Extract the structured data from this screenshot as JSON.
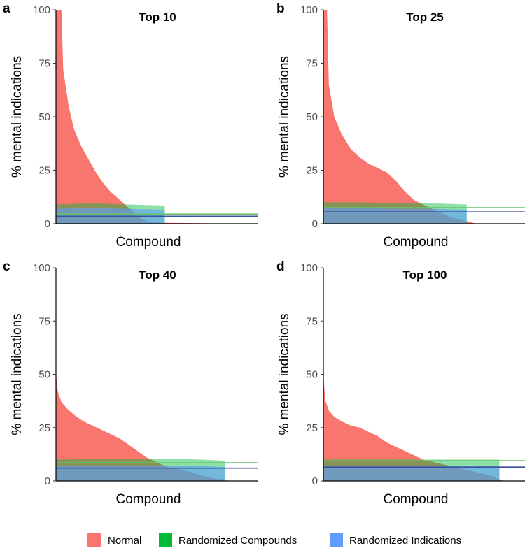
{
  "chart_data": [
    {
      "panel": "a",
      "type": "area",
      "title": "Top 10",
      "xlabel": "Compound",
      "ylabel": "% mental indications",
      "ylim": [
        0,
        100
      ],
      "yticks": [
        0,
        25,
        50,
        75,
        100
      ],
      "xlim": [
        0,
        1
      ],
      "series": [
        {
          "name": "Normal",
          "color": "#F8766D",
          "points": [
            [
              0,
              100
            ],
            [
              0.03,
              100
            ],
            [
              0.04,
              72
            ],
            [
              0.07,
              55
            ],
            [
              0.1,
              44
            ],
            [
              0.14,
              36
            ],
            [
              0.18,
              30
            ],
            [
              0.22,
              24
            ],
            [
              0.26,
              19
            ],
            [
              0.3,
              15
            ],
            [
              0.34,
              12
            ],
            [
              0.38,
              9
            ],
            [
              0.42,
              6
            ],
            [
              0.46,
              3
            ],
            [
              0.5,
              1
            ],
            [
              0.55,
              0.5
            ],
            [
              1,
              0
            ]
          ]
        },
        {
          "name": "Randomized Compounds",
          "color": "#00BA38",
          "points": [
            [
              0,
              9
            ],
            [
              0.2,
              9.5
            ],
            [
              0.4,
              9
            ],
            [
              0.6,
              8.5
            ],
            [
              0.6,
              0
            ]
          ],
          "mean": 4.5
        },
        {
          "name": "Randomized Indications",
          "color": "#619CFF",
          "points": [
            [
              0,
              7
            ],
            [
              0.2,
              7.5
            ],
            [
              0.4,
              7
            ],
            [
              0.6,
              6.5
            ],
            [
              0.6,
              0
            ]
          ],
          "mean": 3.5
        }
      ]
    },
    {
      "panel": "b",
      "type": "area",
      "title": "Top 25",
      "xlabel": "Compound",
      "ylabel": "% mental indications",
      "ylim": [
        0,
        100
      ],
      "yticks": [
        0,
        25,
        50,
        75,
        100
      ],
      "xlim": [
        0,
        1
      ],
      "series": [
        {
          "name": "Normal",
          "color": "#F8766D",
          "points": [
            [
              0,
              100
            ],
            [
              0.02,
              100
            ],
            [
              0.03,
              65
            ],
            [
              0.06,
              50
            ],
            [
              0.1,
              42
            ],
            [
              0.15,
              35
            ],
            [
              0.2,
              31
            ],
            [
              0.25,
              28
            ],
            [
              0.3,
              26
            ],
            [
              0.35,
              24
            ],
            [
              0.4,
              20
            ],
            [
              0.45,
              15
            ],
            [
              0.5,
              11
            ],
            [
              0.55,
              9
            ],
            [
              0.6,
              7
            ],
            [
              0.65,
              5
            ],
            [
              0.7,
              3
            ],
            [
              0.75,
              2
            ],
            [
              0.8,
              1
            ],
            [
              0.84,
              0
            ],
            [
              1,
              0
            ]
          ]
        },
        {
          "name": "Randomized Compounds",
          "color": "#00BA38",
          "points": [
            [
              0,
              10
            ],
            [
              0.2,
              10
            ],
            [
              0.4,
              9.5
            ],
            [
              0.6,
              9.5
            ],
            [
              0.79,
              9
            ],
            [
              0.79,
              0
            ]
          ],
          "mean": 7.5
        },
        {
          "name": "Randomized Indications",
          "color": "#619CFF",
          "points": [
            [
              0,
              7.5
            ],
            [
              0.2,
              7.5
            ],
            [
              0.4,
              7
            ],
            [
              0.6,
              7
            ],
            [
              0.79,
              6.5
            ],
            [
              0.79,
              0
            ]
          ],
          "mean": 5.5
        }
      ]
    },
    {
      "panel": "c",
      "type": "area",
      "title": "Top 40",
      "xlabel": "Compound",
      "ylabel": "% mental indications",
      "ylim": [
        0,
        100
      ],
      "yticks": [
        0,
        25,
        50,
        75,
        100
      ],
      "xlim": [
        0,
        1
      ],
      "series": [
        {
          "name": "Normal",
          "color": "#F8766D",
          "points": [
            [
              0,
              50
            ],
            [
              0.01,
              42
            ],
            [
              0.03,
              37
            ],
            [
              0.06,
              34
            ],
            [
              0.1,
              31
            ],
            [
              0.15,
              28
            ],
            [
              0.2,
              26
            ],
            [
              0.25,
              24
            ],
            [
              0.3,
              22
            ],
            [
              0.35,
              20
            ],
            [
              0.4,
              17
            ],
            [
              0.45,
              14
            ],
            [
              0.5,
              11
            ],
            [
              0.55,
              9
            ],
            [
              0.6,
              7
            ],
            [
              0.65,
              6
            ],
            [
              0.7,
              5
            ],
            [
              0.75,
              4
            ],
            [
              0.8,
              2.5
            ],
            [
              0.85,
              1.5
            ],
            [
              0.9,
              0.8
            ],
            [
              0.93,
              0.3
            ],
            [
              1,
              0
            ]
          ]
        },
        {
          "name": "Randomized Compounds",
          "color": "#00BA38",
          "points": [
            [
              0,
              10
            ],
            [
              0.3,
              10.5
            ],
            [
              0.6,
              10.5
            ],
            [
              0.8,
              10
            ],
            [
              0.93,
              9.5
            ],
            [
              0.93,
              0
            ]
          ],
          "mean": 8.5
        },
        {
          "name": "Randomized Indications",
          "color": "#619CFF",
          "points": [
            [
              0,
              7
            ],
            [
              0.3,
              7
            ],
            [
              0.6,
              7
            ],
            [
              0.8,
              7
            ],
            [
              0.93,
              6.5
            ],
            [
              0.93,
              0
            ]
          ],
          "mean": 6
        }
      ]
    },
    {
      "panel": "d",
      "type": "area",
      "title": "Top 100",
      "xlabel": "Compound",
      "ylabel": "% mental indications",
      "ylim": [
        0,
        100
      ],
      "yticks": [
        0,
        25,
        50,
        75,
        100
      ],
      "xlim": [
        0,
        1
      ],
      "series": [
        {
          "name": "Normal",
          "color": "#F8766D",
          "points": [
            [
              0,
              50
            ],
            [
              0.01,
              38
            ],
            [
              0.03,
              33
            ],
            [
              0.06,
              30
            ],
            [
              0.1,
              28
            ],
            [
              0.15,
              26
            ],
            [
              0.2,
              25
            ],
            [
              0.25,
              23
            ],
            [
              0.3,
              21
            ],
            [
              0.35,
              18
            ],
            [
              0.4,
              16
            ],
            [
              0.45,
              14
            ],
            [
              0.5,
              12
            ],
            [
              0.55,
              10
            ],
            [
              0.6,
              9
            ],
            [
              0.65,
              8
            ],
            [
              0.7,
              7
            ],
            [
              0.75,
              6
            ],
            [
              0.8,
              5
            ],
            [
              0.85,
              4
            ],
            [
              0.9,
              3
            ],
            [
              0.95,
              1.5
            ],
            [
              0.97,
              0.5
            ],
            [
              1,
              0
            ]
          ]
        },
        {
          "name": "Randomized Compounds",
          "color": "#00BA38",
          "points": [
            [
              0,
              10
            ],
            [
              0.3,
              10
            ],
            [
              0.6,
              10
            ],
            [
              0.8,
              10
            ],
            [
              0.97,
              10
            ],
            [
              0.97,
              0
            ]
          ],
          "mean": 9.5
        },
        {
          "name": "Randomized Indications",
          "color": "#619CFF",
          "points": [
            [
              0,
              7
            ],
            [
              0.3,
              7
            ],
            [
              0.6,
              7
            ],
            [
              0.8,
              7
            ],
            [
              0.97,
              7
            ],
            [
              0.97,
              0
            ]
          ],
          "mean": 6.5
        }
      ]
    }
  ],
  "legend": {
    "position": "bottom",
    "items": [
      {
        "label": "Normal",
        "color": "#F8766D"
      },
      {
        "label": "Randomized Compounds",
        "color": "#00BA38"
      },
      {
        "label": "Randomized Indications",
        "color": "#619CFF"
      }
    ]
  },
  "mean_line_colors": {
    "Randomized Compounds": "#66C26B",
    "Randomized Indications": "#3B4FA0"
  }
}
